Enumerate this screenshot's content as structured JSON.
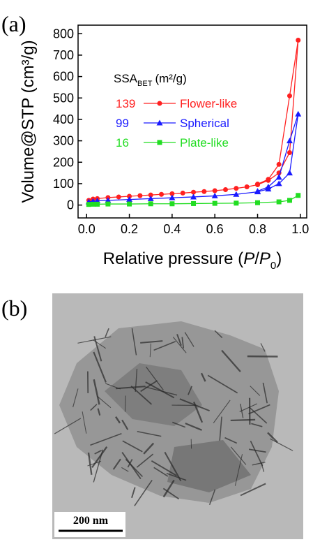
{
  "chart_data": {
    "type": "line",
    "panel_label": "(a)",
    "ylabel": "Volume@STP (cm³/g)",
    "xlabel": {
      "text": "Relative pressure (",
      "p": "P",
      "slash": "/",
      "p0": "P",
      "sub": "0",
      "close": ")"
    },
    "legend_title": {
      "main": "SSA",
      "sub": "BET",
      "unit": "(m²/g)"
    },
    "xlim": [
      -0.04,
      1.03
    ],
    "xticks": [
      {
        "value": 0,
        "label": "0.0"
      },
      0.2,
      0.4,
      0.6,
      0.8,
      {
        "value": 1,
        "label": "1.0"
      }
    ],
    "ylim": [
      -60,
      840
    ],
    "yticks": [
      0,
      100,
      200,
      300,
      400,
      500,
      600,
      700,
      800
    ],
    "series": [
      {
        "name": "Flower-like",
        "ssa": 139,
        "color": "#ff2020",
        "marker": "circle",
        "x": [
          0.01,
          0.03,
          0.05,
          0.1,
          0.15,
          0.2,
          0.25,
          0.3,
          0.35,
          0.4,
          0.45,
          0.5,
          0.55,
          0.6,
          0.65,
          0.7,
          0.75,
          0.8,
          0.85,
          0.9,
          0.95,
          0.99,
          0.95,
          0.9,
          0.85,
          0.8
        ],
        "values": [
          22,
          28,
          30,
          35,
          38,
          41,
          44,
          47,
          50,
          53,
          56,
          60,
          63,
          67,
          72,
          78,
          85,
          95,
          115,
          150,
          245,
          770,
          510,
          190,
          120,
          98
        ]
      },
      {
        "name": "Spherical",
        "ssa": 99,
        "color": "#1a1aff",
        "marker": "triangle",
        "x": [
          0.01,
          0.03,
          0.05,
          0.1,
          0.2,
          0.3,
          0.4,
          0.5,
          0.6,
          0.7,
          0.8,
          0.85,
          0.9,
          0.95,
          0.99,
          0.95,
          0.9,
          0.85,
          0.8
        ],
        "values": [
          15,
          18,
          20,
          22,
          26,
          30,
          34,
          38,
          43,
          50,
          62,
          75,
          100,
          150,
          425,
          300,
          130,
          85,
          65
        ]
      },
      {
        "name": "Plate-like",
        "ssa": 16,
        "color": "#22dd22",
        "marker": "square",
        "x": [
          0.01,
          0.03,
          0.05,
          0.1,
          0.2,
          0.3,
          0.4,
          0.5,
          0.6,
          0.7,
          0.8,
          0.9,
          0.95,
          0.99
        ],
        "values": [
          3,
          4,
          4,
          5,
          5,
          6,
          6,
          7,
          8,
          9,
          11,
          15,
          22,
          45
        ]
      }
    ]
  },
  "image_panel": {
    "panel_label": "(b)",
    "scale_bar": "200 nm"
  }
}
